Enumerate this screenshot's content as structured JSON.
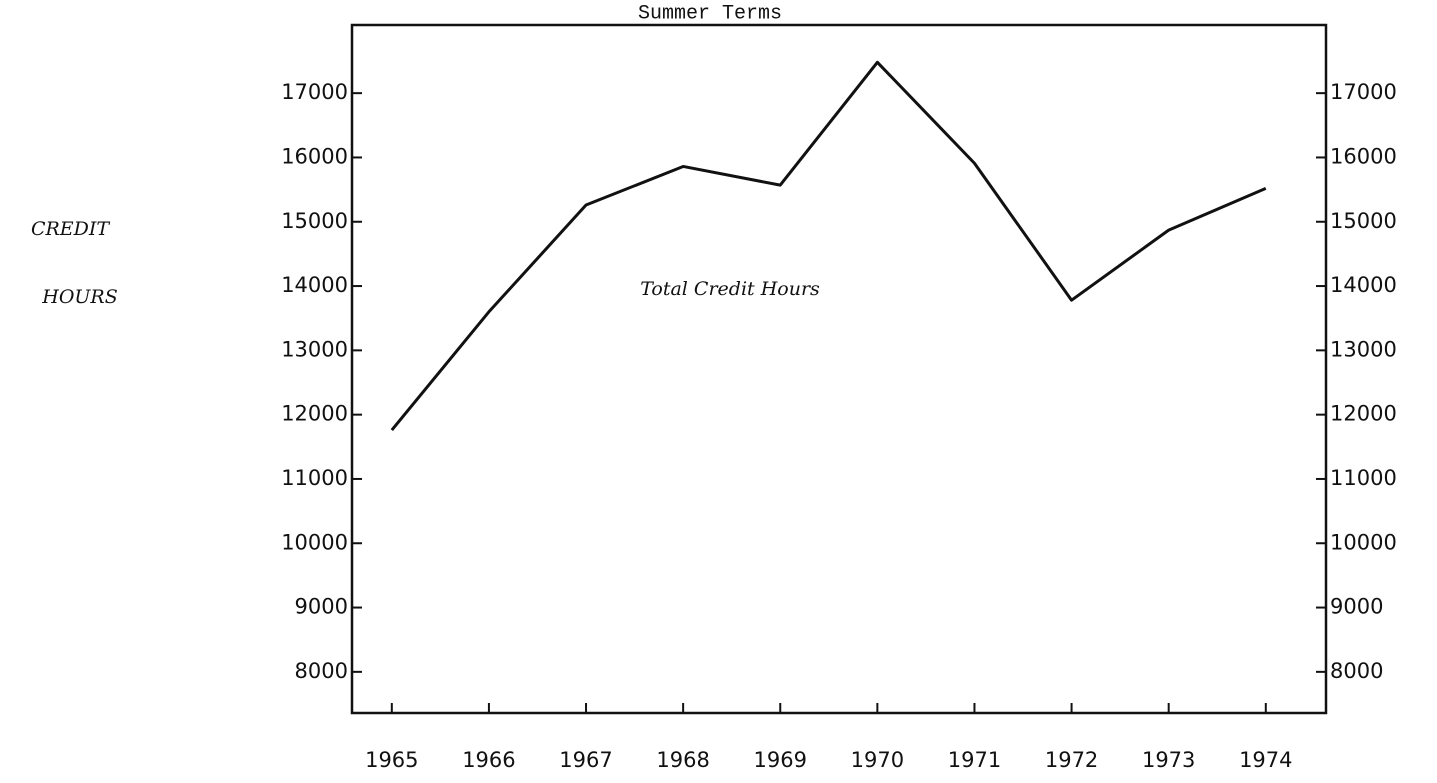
{
  "chart_data": {
    "type": "line",
    "title": "Summer Terms",
    "ylabel": [
      "CREDIT",
      "HOURS"
    ],
    "annotation": "Total Credit Hours",
    "x": [
      1965,
      1966,
      1967,
      1968,
      1969,
      1970,
      1971,
      1972,
      1973,
      1974
    ],
    "xlim": [
      1964.59,
      1974.62
    ],
    "xticks": [
      1965,
      1966,
      1967,
      1968,
      1969,
      1970,
      1971,
      1972,
      1973,
      1974
    ],
    "series": [
      {
        "name": "Total Credit Hours",
        "color": "#111111",
        "values": [
          11760,
          13600,
          15260,
          15860,
          15570,
          17480,
          15910,
          13780,
          14870,
          15520
        ]
      }
    ],
    "ylim": [
      7360,
      18060
    ],
    "yticks": [
      8000,
      9000,
      10000,
      11000,
      12000,
      13000,
      14000,
      15000,
      16000,
      17000
    ],
    "y2lim": [
      7360,
      18060
    ],
    "y2ticks": [
      8000,
      9000,
      10000,
      11000,
      12000,
      13000,
      14000,
      15000,
      16000,
      17000
    ],
    "grid": false
  }
}
